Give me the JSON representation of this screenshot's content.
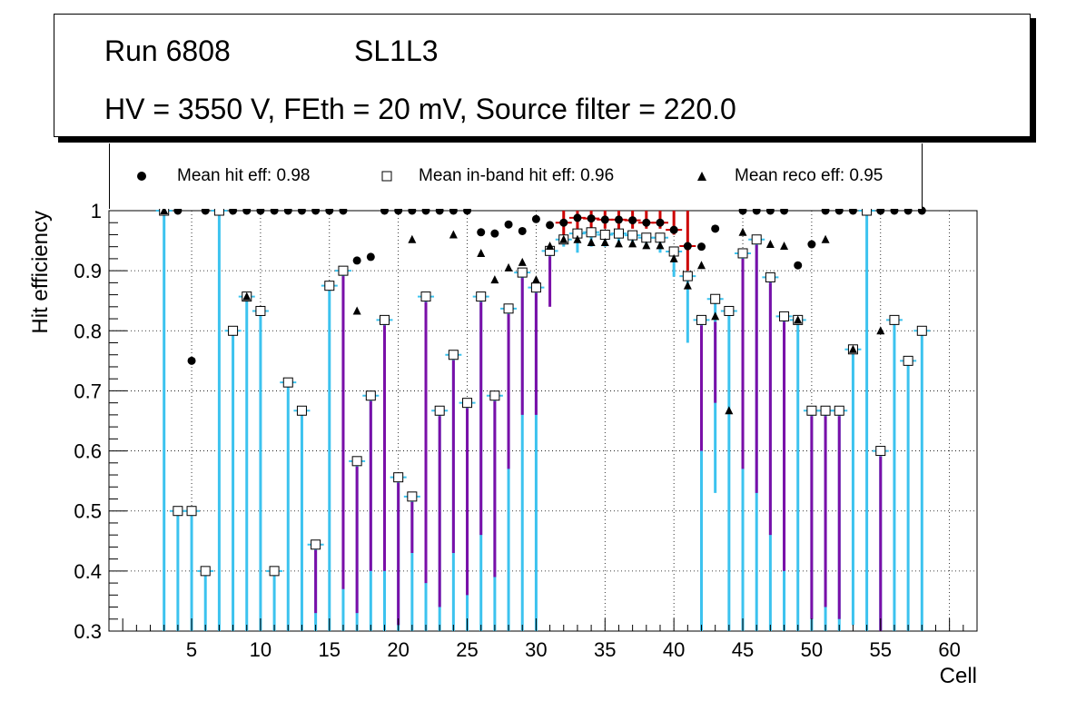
{
  "header": {
    "run_label": "Run 6808",
    "layer_label": "SL1L3",
    "conditions": "HV = 3550 V, FEth = 20 mV, Source filter = 220.0"
  },
  "legend": {
    "hit": "Mean hit  eff: 0.98",
    "inband": "Mean in-band hit eff: 0.96",
    "reco": "Mean reco eff: 0.95"
  },
  "colors": {
    "hit_err": "#cc0000",
    "inband_err": "#3cc3ef",
    "reco_err": "#7a0fa8",
    "inband_fill": "#9fd8f0"
  },
  "chart_data": {
    "type": "scatter",
    "title": "",
    "xlabel": "Cell",
    "ylabel": "Hit efficiency",
    "xlim": [
      -1,
      62
    ],
    "ylim": [
      0.3,
      1.0
    ],
    "xticks": [
      5,
      10,
      15,
      20,
      25,
      30,
      35,
      40,
      45,
      50,
      55,
      60
    ],
    "yticks": [
      0.3,
      0.4,
      0.5,
      0.6,
      0.7,
      0.8,
      0.9,
      1
    ],
    "grid": true,
    "series": [
      {
        "name": "Mean hit  eff: 0.98",
        "marker": "circle",
        "points": [
          {
            "x": 3,
            "y": 1
          },
          {
            "x": 4,
            "y": 1
          },
          {
            "x": 5,
            "y": 0.75
          },
          {
            "x": 6,
            "y": 1
          },
          {
            "x": 7,
            "y": 1
          },
          {
            "x": 8,
            "y": 1
          },
          {
            "x": 9,
            "y": 1
          },
          {
            "x": 10,
            "y": 1
          },
          {
            "x": 11,
            "y": 1
          },
          {
            "x": 12,
            "y": 1
          },
          {
            "x": 13,
            "y": 1
          },
          {
            "x": 14,
            "y": 1
          },
          {
            "x": 15,
            "y": 1
          },
          {
            "x": 16,
            "y": 1
          },
          {
            "x": 17,
            "y": 0.917
          },
          {
            "x": 18,
            "y": 0.923
          },
          {
            "x": 19,
            "y": 1
          },
          {
            "x": 20,
            "y": 1
          },
          {
            "x": 21,
            "y": 1
          },
          {
            "x": 22,
            "y": 1
          },
          {
            "x": 23,
            "y": 1
          },
          {
            "x": 24,
            "y": 1
          },
          {
            "x": 25,
            "y": 1
          },
          {
            "x": 26,
            "y": 0.964
          },
          {
            "x": 27,
            "y": 0.962
          },
          {
            "x": 28,
            "y": 0.977
          },
          {
            "x": 29,
            "y": 0.966
          },
          {
            "x": 30,
            "y": 0.986
          },
          {
            "x": 31,
            "y": 0.976
          },
          {
            "x": 32,
            "y": 0.98
          },
          {
            "x": 33,
            "y": 0.988
          },
          {
            "x": 34,
            "y": 0.987
          },
          {
            "x": 35,
            "y": 0.985
          },
          {
            "x": 36,
            "y": 0.985
          },
          {
            "x": 37,
            "y": 0.984
          },
          {
            "x": 38,
            "y": 0.98
          },
          {
            "x": 39,
            "y": 0.98
          },
          {
            "x": 40,
            "y": 0.968
          },
          {
            "x": 41,
            "y": 0.941
          },
          {
            "x": 42,
            "y": 0.94
          },
          {
            "x": 43,
            "y": 0.97
          },
          {
            "x": 44,
            "y": 0.833
          },
          {
            "x": 45,
            "y": 1
          },
          {
            "x": 46,
            "y": 1
          },
          {
            "x": 47,
            "y": 1
          },
          {
            "x": 48,
            "y": 1
          },
          {
            "x": 49,
            "y": 0.909
          },
          {
            "x": 50,
            "y": 0.944
          },
          {
            "x": 51,
            "y": 1
          },
          {
            "x": 52,
            "y": 1
          },
          {
            "x": 53,
            "y": 1
          },
          {
            "x": 54,
            "y": 1
          },
          {
            "x": 55,
            "y": 1
          },
          {
            "x": 56,
            "y": 1
          },
          {
            "x": 57,
            "y": 1
          },
          {
            "x": 58,
            "y": 1
          }
        ]
      },
      {
        "name": "Mean in-band hit eff: 0.96",
        "marker": "open-square",
        "points": [
          {
            "x": 3,
            "y": 1
          },
          {
            "x": 4,
            "y": 0.5
          },
          {
            "x": 5,
            "y": 0.5
          },
          {
            "x": 6,
            "y": 0.4
          },
          {
            "x": 7,
            "y": 1
          },
          {
            "x": 8,
            "y": 0.8
          },
          {
            "x": 9,
            "y": 0.857
          },
          {
            "x": 10,
            "y": 0.833
          },
          {
            "x": 11,
            "y": 0.4
          },
          {
            "x": 12,
            "y": 0.714
          },
          {
            "x": 13,
            "y": 0.667
          },
          {
            "x": 14,
            "y": 0.444
          },
          {
            "x": 15,
            "y": 0.875
          },
          {
            "x": 16,
            "y": 0.9
          },
          {
            "x": 17,
            "y": 0.583
          },
          {
            "x": 18,
            "y": 0.692
          },
          {
            "x": 19,
            "y": 0.818
          },
          {
            "x": 20,
            "y": 0.556
          },
          {
            "x": 21,
            "y": 0.524
          },
          {
            "x": 22,
            "y": 0.857
          },
          {
            "x": 23,
            "y": 0.667
          },
          {
            "x": 24,
            "y": 0.76
          },
          {
            "x": 25,
            "y": 0.68
          },
          {
            "x": 26,
            "y": 0.857
          },
          {
            "x": 27,
            "y": 0.692
          },
          {
            "x": 28,
            "y": 0.837
          },
          {
            "x": 29,
            "y": 0.897
          },
          {
            "x": 30,
            "y": 0.872
          },
          {
            "x": 31,
            "y": 0.933
          },
          {
            "x": 32,
            "y": 0.952
          },
          {
            "x": 33,
            "y": 0.962
          },
          {
            "x": 34,
            "y": 0.964
          },
          {
            "x": 35,
            "y": 0.96
          },
          {
            "x": 36,
            "y": 0.962
          },
          {
            "x": 37,
            "y": 0.959
          },
          {
            "x": 38,
            "y": 0.955
          },
          {
            "x": 39,
            "y": 0.955
          },
          {
            "x": 40,
            "y": 0.932
          },
          {
            "x": 41,
            "y": 0.891
          },
          {
            "x": 42,
            "y": 0.818
          },
          {
            "x": 43,
            "y": 0.853
          },
          {
            "x": 44,
            "y": 0.833
          },
          {
            "x": 45,
            "y": 0.929
          },
          {
            "x": 46,
            "y": 0.952
          },
          {
            "x": 47,
            "y": 0.889
          },
          {
            "x": 48,
            "y": 0.824
          },
          {
            "x": 49,
            "y": 0.818
          },
          {
            "x": 50,
            "y": 0.667
          },
          {
            "x": 51,
            "y": 0.667
          },
          {
            "x": 52,
            "y": 0.667
          },
          {
            "x": 53,
            "y": 0.769
          },
          {
            "x": 54,
            "y": 1
          },
          {
            "x": 55,
            "y": 0.6
          },
          {
            "x": 56,
            "y": 0.818
          },
          {
            "x": 57,
            "y": 0.75
          },
          {
            "x": 58,
            "y": 0.8
          }
        ]
      },
      {
        "name": "Mean reco eff: 0.95",
        "marker": "triangle",
        "points": [
          {
            "x": 3,
            "y": 1
          },
          {
            "x": 9,
            "y": 0.857
          },
          {
            "x": 17,
            "y": 0.833
          },
          {
            "x": 21,
            "y": 0.952
          },
          {
            "x": 24,
            "y": 0.96
          },
          {
            "x": 26,
            "y": 0.929
          },
          {
            "x": 27,
            "y": 0.885
          },
          {
            "x": 28,
            "y": 0.905
          },
          {
            "x": 29,
            "y": 0.914
          },
          {
            "x": 30,
            "y": 0.885
          },
          {
            "x": 31,
            "y": 0.941
          },
          {
            "x": 32,
            "y": 0.952
          },
          {
            "x": 33,
            "y": 0.952
          },
          {
            "x": 34,
            "y": 0.947
          },
          {
            "x": 35,
            "y": 0.947
          },
          {
            "x": 36,
            "y": 0.945
          },
          {
            "x": 37,
            "y": 0.945
          },
          {
            "x": 38,
            "y": 0.942
          },
          {
            "x": 39,
            "y": 0.942
          },
          {
            "x": 40,
            "y": 0.92
          },
          {
            "x": 41,
            "y": 0.875
          },
          {
            "x": 42,
            "y": 0.909
          },
          {
            "x": 43,
            "y": 0.824
          },
          {
            "x": 44,
            "y": 0.667
          },
          {
            "x": 45,
            "y": 0.964
          },
          {
            "x": 47,
            "y": 0.944
          },
          {
            "x": 48,
            "y": 0.941
          },
          {
            "x": 49,
            "y": 0.818
          },
          {
            "x": 51,
            "y": 0.952
          },
          {
            "x": 53,
            "y": 0.769
          },
          {
            "x": 55,
            "y": 0.8
          }
        ]
      }
    ],
    "error_bars": {
      "inband_lower": [
        {
          "x": 3,
          "y": 0.3
        },
        {
          "x": 4,
          "y": 0.3
        },
        {
          "x": 5,
          "y": 0.3
        },
        {
          "x": 6,
          "y": 0.3
        },
        {
          "x": 7,
          "y": 0.3
        },
        {
          "x": 8,
          "y": 0.3
        },
        {
          "x": 9,
          "y": 0.3
        },
        {
          "x": 10,
          "y": 0.3
        },
        {
          "x": 11,
          "y": 0.3
        },
        {
          "x": 12,
          "y": 0.3
        },
        {
          "x": 13,
          "y": 0.3
        },
        {
          "x": 14,
          "y": 0.3
        },
        {
          "x": 15,
          "y": 0.3
        },
        {
          "x": 16,
          "y": 0.3
        },
        {
          "x": 17,
          "y": 0.3
        },
        {
          "x": 18,
          "y": 0.3
        },
        {
          "x": 19,
          "y": 0.3
        },
        {
          "x": 20,
          "y": 0.3
        },
        {
          "x": 21,
          "y": 0.3
        },
        {
          "x": 22,
          "y": 0.3
        },
        {
          "x": 23,
          "y": 0.3
        },
        {
          "x": 24,
          "y": 0.3
        },
        {
          "x": 25,
          "y": 0.3
        },
        {
          "x": 26,
          "y": 0.3
        },
        {
          "x": 27,
          "y": 0.3
        },
        {
          "x": 28,
          "y": 0.3
        },
        {
          "x": 29,
          "y": 0.3
        },
        {
          "x": 30,
          "y": 0.3
        },
        {
          "x": 31,
          "y": 0.9
        },
        {
          "x": 32,
          "y": 0.94
        },
        {
          "x": 33,
          "y": 0.93
        },
        {
          "x": 34,
          "y": 0.94
        },
        {
          "x": 35,
          "y": 0.94
        },
        {
          "x": 36,
          "y": 0.94
        },
        {
          "x": 37,
          "y": 0.94
        },
        {
          "x": 38,
          "y": 0.94
        },
        {
          "x": 39,
          "y": 0.93
        },
        {
          "x": 40,
          "y": 0.89
        },
        {
          "x": 41,
          "y": 0.78
        },
        {
          "x": 42,
          "y": 0.3
        },
        {
          "x": 43,
          "y": 0.53
        },
        {
          "x": 44,
          "y": 0.3
        },
        {
          "x": 45,
          "y": 0.3
        },
        {
          "x": 46,
          "y": 0.3
        },
        {
          "x": 47,
          "y": 0.3
        },
        {
          "x": 48,
          "y": 0.3
        },
        {
          "x": 49,
          "y": 0.3
        },
        {
          "x": 50,
          "y": 0.3
        },
        {
          "x": 51,
          "y": 0.3
        },
        {
          "x": 52,
          "y": 0.3
        },
        {
          "x": 53,
          "y": 0.31
        },
        {
          "x": 54,
          "y": 0.3
        },
        {
          "x": 55,
          "y": 0.3
        },
        {
          "x": 56,
          "y": 0.3
        },
        {
          "x": 57,
          "y": 0.3
        },
        {
          "x": 58,
          "y": 0.3
        }
      ],
      "reco_lower": [
        {
          "x": 14,
          "y": 0.33
        },
        {
          "x": 16,
          "y": 0.37
        },
        {
          "x": 17,
          "y": 0.33
        },
        {
          "x": 18,
          "y": 0.4
        },
        {
          "x": 19,
          "y": 0.4
        },
        {
          "x": 20,
          "y": 0.31
        },
        {
          "x": 21,
          "y": 0.43
        },
        {
          "x": 22,
          "y": 0.38
        },
        {
          "x": 23,
          "y": 0.34
        },
        {
          "x": 24,
          "y": 0.43
        },
        {
          "x": 25,
          "y": 0.36
        },
        {
          "x": 26,
          "y": 0.46
        },
        {
          "x": 27,
          "y": 0.39
        },
        {
          "x": 28,
          "y": 0.57
        },
        {
          "x": 29,
          "y": 0.66
        },
        {
          "x": 30,
          "y": 0.66
        },
        {
          "x": 31,
          "y": 0.84
        },
        {
          "x": 42,
          "y": 0.6
        },
        {
          "x": 43,
          "y": 0.68
        },
        {
          "x": 45,
          "y": 0.57
        },
        {
          "x": 46,
          "y": 0.53
        },
        {
          "x": 47,
          "y": 0.46
        },
        {
          "x": 48,
          "y": 0.4
        },
        {
          "x": 50,
          "y": 0.32
        },
        {
          "x": 51,
          "y": 0.34
        },
        {
          "x": 52,
          "y": 0.32
        },
        {
          "x": 55,
          "y": 0.3
        }
      ],
      "hit_lower": [
        {
          "x": 32,
          "y": 0.96
        },
        {
          "x": 33,
          "y": 0.97
        },
        {
          "x": 34,
          "y": 0.97
        },
        {
          "x": 35,
          "y": 0.97
        },
        {
          "x": 36,
          "y": 0.97
        },
        {
          "x": 37,
          "y": 0.97
        },
        {
          "x": 38,
          "y": 0.97
        },
        {
          "x": 39,
          "y": 0.97
        },
        {
          "x": 40,
          "y": 0.96
        },
        {
          "x": 41,
          "y": 0.9
        }
      ]
    }
  }
}
